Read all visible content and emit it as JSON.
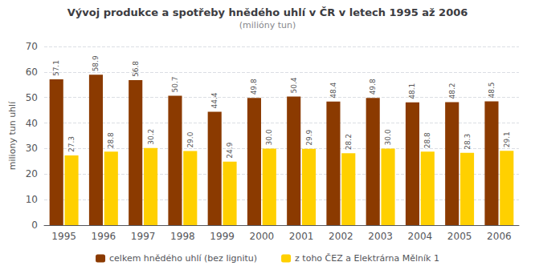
{
  "chart_data": {
    "type": "bar",
    "title": "Vývoj produkce a spotřeby hnědého uhlí v ČR v letech 1995 až 2006",
    "subtitle": "(milióny tun)",
    "ylabel": "miliony tun uhlí",
    "categories": [
      "1995",
      "1996",
      "1997",
      "1998",
      "1999",
      "2000",
      "2001",
      "2002",
      "2003",
      "2004",
      "2005",
      "2006"
    ],
    "series": [
      {
        "name": "celkem hnědého uhlí (bez lignitu)",
        "color": "#8B3A00",
        "values": [
          57.1,
          58.9,
          56.8,
          50.7,
          44.4,
          49.8,
          50.4,
          48.4,
          49.8,
          48.1,
          48.2,
          48.5
        ]
      },
      {
        "name": "z toho ČEZ a Elektrárna Mělník 1",
        "color": "#FFD000",
        "values": [
          27.3,
          28.8,
          30.2,
          29.0,
          24.9,
          30.0,
          29.9,
          28.2,
          30.0,
          28.8,
          28.3,
          29.1
        ],
        "value_labels": [
          "27.3",
          "28.8",
          "30.2",
          "29.0",
          "24.9",
          "30.0",
          "29.9",
          "28.2",
          "30.0",
          "28.8",
          "28.3",
          "29.1"
        ]
      }
    ],
    "ylim": [
      0,
      70
    ],
    "yticks": [
      0,
      10,
      20,
      30,
      40,
      50,
      60,
      70
    ],
    "grid": true,
    "data_labels": true,
    "legend": "bottom"
  }
}
